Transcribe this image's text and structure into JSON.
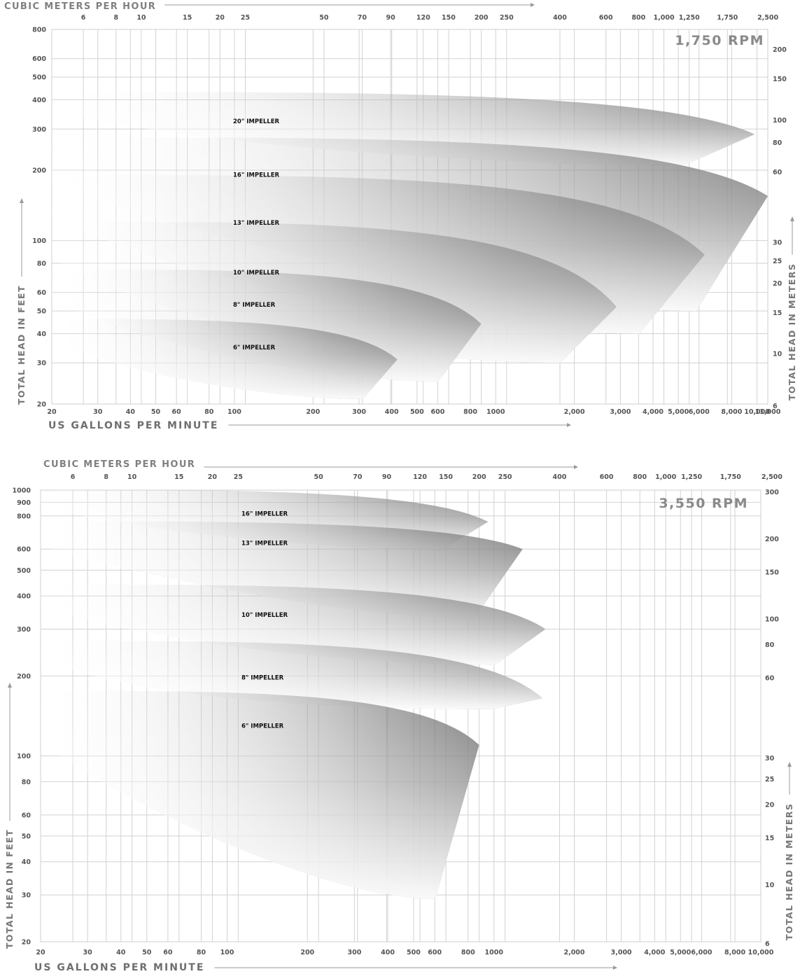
{
  "chart_data": [
    {
      "type": "area",
      "speed_label": "1,750 RPM",
      "top_axis": {
        "title": "CUBIC METERS PER HOUR",
        "ticks": [
          {
            "v": 6,
            "t": "6"
          },
          {
            "v": 8,
            "t": "8"
          },
          {
            "v": 10,
            "t": "10"
          },
          {
            "v": 15,
            "t": "15"
          },
          {
            "v": 20,
            "t": "20"
          },
          {
            "v": 25,
            "t": "25"
          },
          {
            "v": 50,
            "t": "50"
          },
          {
            "v": 70,
            "t": "70"
          },
          {
            "v": 90,
            "t": "90"
          },
          {
            "v": 120,
            "t": "120"
          },
          {
            "v": 150,
            "t": "150"
          },
          {
            "v": 200,
            "t": "200"
          },
          {
            "v": 250,
            "t": "250"
          },
          {
            "v": 400,
            "t": "400"
          },
          {
            "v": 600,
            "t": "600"
          },
          {
            "v": 800,
            "t": "800"
          },
          {
            "v": 1000,
            "t": "1,000"
          },
          {
            "v": 1250,
            "t": "1,250"
          },
          {
            "v": 1750,
            "t": "1,750"
          },
          {
            "v": 2500,
            "t": "2,500"
          }
        ]
      },
      "bottom_axis": {
        "title": "US GALLONS PER MINUTE",
        "ticks": [
          {
            "v": 20,
            "t": "20"
          },
          {
            "v": 30,
            "t": "30"
          },
          {
            "v": 40,
            "t": "40"
          },
          {
            "v": 50,
            "t": "50"
          },
          {
            "v": 60,
            "t": "60"
          },
          {
            "v": 80,
            "t": "80"
          },
          {
            "v": 100,
            "t": "100"
          },
          {
            "v": 200,
            "t": "200"
          },
          {
            "v": 300,
            "t": "300"
          },
          {
            "v": 400,
            "t": "400"
          },
          {
            "v": 500,
            "t": "500"
          },
          {
            "v": 600,
            "t": "600"
          },
          {
            "v": 800,
            "t": "800"
          },
          {
            "v": 1000,
            "t": "1000"
          },
          {
            "v": 2000,
            "t": "2,000"
          },
          {
            "v": 3000,
            "t": "3,000"
          },
          {
            "v": 4000,
            "t": "4,000"
          },
          {
            "v": 5000,
            "t": "5,000"
          },
          {
            "v": 6000,
            "t": "6,000"
          },
          {
            "v": 8000,
            "t": "8,000"
          },
          {
            "v": 10000,
            "t": "10,000"
          },
          {
            "v": 11000,
            "t": "11,000"
          }
        ]
      },
      "left_axis": {
        "title": "TOTAL HEAD IN FEET",
        "ticks": [
          {
            "v": 20,
            "t": "20"
          },
          {
            "v": 30,
            "t": "30"
          },
          {
            "v": 40,
            "t": "40"
          },
          {
            "v": 50,
            "t": "50"
          },
          {
            "v": 60,
            "t": "60"
          },
          {
            "v": 80,
            "t": "80"
          },
          {
            "v": 100,
            "t": "100"
          },
          {
            "v": 200,
            "t": "200"
          },
          {
            "v": 300,
            "t": "300"
          },
          {
            "v": 400,
            "t": "400"
          },
          {
            "v": 500,
            "t": "500"
          },
          {
            "v": 600,
            "t": "600"
          },
          {
            "v": 800,
            "t": "800"
          }
        ]
      },
      "right_axis": {
        "title": "TOTAL HEAD IN METERS",
        "ticks": [
          {
            "v": 6,
            "t": "6"
          },
          {
            "v": 10,
            "t": "10"
          },
          {
            "v": 15,
            "t": "15"
          },
          {
            "v": 20,
            "t": "20"
          },
          {
            "v": 25,
            "t": "25"
          },
          {
            "v": 30,
            "t": "30"
          },
          {
            "v": 60,
            "t": "60"
          },
          {
            "v": 80,
            "t": "80"
          },
          {
            "v": 100,
            "t": "100"
          },
          {
            "v": 150,
            "t": "150"
          },
          {
            "v": 200,
            "t": "200"
          }
        ]
      },
      "grid": true,
      "series": [
        {
          "name": "20\" IMPELLER",
          "shutoff_head_ft": 430,
          "max_flow_gpm": 9800,
          "head_at_max_flow_ft": 285,
          "min_head_ft": 210
        },
        {
          "name": "16\" IMPELLER",
          "shutoff_head_ft": 275,
          "max_flow_gpm": 11000,
          "head_at_max_flow_ft": 155,
          "min_head_ft": 50
        },
        {
          "name": "13\" IMPELLER",
          "shutoff_head_ft": 190,
          "max_flow_gpm": 6300,
          "head_at_max_flow_ft": 87,
          "min_head_ft": 40
        },
        {
          "name": "10\" IMPELLER",
          "shutoff_head_ft": 120,
          "max_flow_gpm": 2900,
          "head_at_max_flow_ft": 52,
          "min_head_ft": 30
        },
        {
          "name": "8\" IMPELLER",
          "shutoff_head_ft": 75,
          "max_flow_gpm": 880,
          "head_at_max_flow_ft": 44,
          "min_head_ft": 25
        },
        {
          "name": "6\" IMPELLER",
          "shutoff_head_ft": 46,
          "max_flow_gpm": 420,
          "head_at_max_flow_ft": 31,
          "min_head_ft": 21
        }
      ]
    },
    {
      "type": "area",
      "speed_label": "3,550 RPM",
      "top_axis": {
        "title": "CUBIC METERS PER HOUR",
        "ticks": [
          {
            "v": 6,
            "t": "6"
          },
          {
            "v": 8,
            "t": "8"
          },
          {
            "v": 10,
            "t": "10"
          },
          {
            "v": 15,
            "t": "15"
          },
          {
            "v": 20,
            "t": "20"
          },
          {
            "v": 25,
            "t": "25"
          },
          {
            "v": 50,
            "t": "50"
          },
          {
            "v": 70,
            "t": "70"
          },
          {
            "v": 90,
            "t": "90"
          },
          {
            "v": 120,
            "t": "120"
          },
          {
            "v": 150,
            "t": "150"
          },
          {
            "v": 200,
            "t": "200"
          },
          {
            "v": 250,
            "t": "250"
          },
          {
            "v": 400,
            "t": "400"
          },
          {
            "v": 600,
            "t": "600"
          },
          {
            "v": 800,
            "t": "800"
          },
          {
            "v": 1000,
            "t": "1,000"
          },
          {
            "v": 1250,
            "t": "1,250"
          },
          {
            "v": 1750,
            "t": "1,750"
          },
          {
            "v": 2500,
            "t": "2,500"
          }
        ]
      },
      "bottom_axis": {
        "title": "US GALLONS PER MINUTE",
        "ticks": [
          {
            "v": 20,
            "t": "20"
          },
          {
            "v": 30,
            "t": "30"
          },
          {
            "v": 40,
            "t": "40"
          },
          {
            "v": 50,
            "t": "50"
          },
          {
            "v": 60,
            "t": "60"
          },
          {
            "v": 80,
            "t": "80"
          },
          {
            "v": 100,
            "t": "100"
          },
          {
            "v": 200,
            "t": "200"
          },
          {
            "v": 300,
            "t": "300"
          },
          {
            "v": 400,
            "t": "400"
          },
          {
            "v": 500,
            "t": "500"
          },
          {
            "v": 600,
            "t": "600"
          },
          {
            "v": 800,
            "t": "800"
          },
          {
            "v": 1000,
            "t": "1000"
          },
          {
            "v": 2000,
            "t": "2,000"
          },
          {
            "v": 3000,
            "t": "3,000"
          },
          {
            "v": 4000,
            "t": "4,000"
          },
          {
            "v": 5000,
            "t": "5,000"
          },
          {
            "v": 6000,
            "t": "6,000"
          },
          {
            "v": 8000,
            "t": "8,000"
          },
          {
            "v": 10000,
            "t": "10,000"
          }
        ]
      },
      "left_axis": {
        "title": "TOTAL HEAD IN FEET",
        "ticks": [
          {
            "v": 20,
            "t": "20"
          },
          {
            "v": 30,
            "t": "30"
          },
          {
            "v": 40,
            "t": "40"
          },
          {
            "v": 50,
            "t": "50"
          },
          {
            "v": 60,
            "t": "60"
          },
          {
            "v": 80,
            "t": "80"
          },
          {
            "v": 100,
            "t": "100"
          },
          {
            "v": 200,
            "t": "200"
          },
          {
            "v": 300,
            "t": "300"
          },
          {
            "v": 400,
            "t": "400"
          },
          {
            "v": 500,
            "t": "500"
          },
          {
            "v": 600,
            "t": "600"
          },
          {
            "v": 800,
            "t": "800"
          },
          {
            "v": 900,
            "t": "900"
          },
          {
            "v": 1000,
            "t": "1000"
          }
        ]
      },
      "right_axis": {
        "title": "TOTAL HEAD IN METERS",
        "ticks": [
          {
            "v": 6,
            "t": "6"
          },
          {
            "v": 10,
            "t": "10"
          },
          {
            "v": 15,
            "t": "15"
          },
          {
            "v": 20,
            "t": "20"
          },
          {
            "v": 25,
            "t": "25"
          },
          {
            "v": 30,
            "t": "30"
          },
          {
            "v": 60,
            "t": "60"
          },
          {
            "v": 80,
            "t": "80"
          },
          {
            "v": 100,
            "t": "100"
          },
          {
            "v": 150,
            "t": "150"
          },
          {
            "v": 200,
            "t": "200"
          },
          {
            "v": 300,
            "t": "300"
          }
        ]
      },
      "grid": true,
      "series": [
        {
          "name": "16\" IMPELLER",
          "shutoff_head_ft": 1000,
          "max_flow_gpm": 950,
          "head_at_max_flow_ft": 760,
          "min_head_ft": 600
        },
        {
          "name": "13\" IMPELLER",
          "shutoff_head_ft": 760,
          "max_flow_gpm": 1280,
          "head_at_max_flow_ft": 600,
          "min_head_ft": 330
        },
        {
          "name": "10\" IMPELLER",
          "shutoff_head_ft": 440,
          "max_flow_gpm": 1560,
          "head_at_max_flow_ft": 300,
          "min_head_ft": 220
        },
        {
          "name": "8\" IMPELLER",
          "shutoff_head_ft": 270,
          "max_flow_gpm": 1520,
          "head_at_max_flow_ft": 165,
          "min_head_ft": 150
        },
        {
          "name": "6\" IMPELLER",
          "shutoff_head_ft": 175,
          "max_flow_gpm": 880,
          "head_at_max_flow_ft": 110,
          "min_head_ft": 29
        }
      ]
    }
  ]
}
